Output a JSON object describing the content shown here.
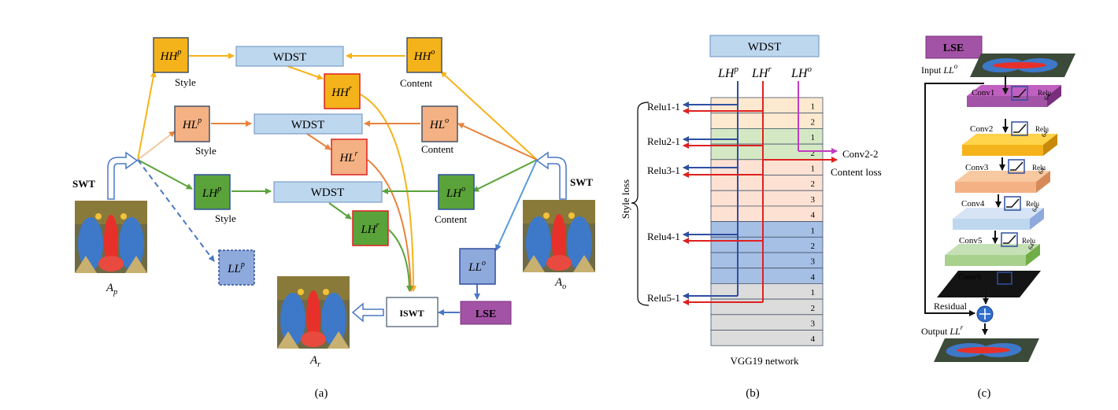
{
  "panel_a": {
    "caption": "(a)",
    "swt_left": "SWT",
    "swt_right": "SWT",
    "input_p": {
      "base": "A",
      "sub": "p"
    },
    "input_o": {
      "base": "A",
      "sub": "o"
    },
    "output_r": {
      "base": "A",
      "sub": "r"
    },
    "wdst": "WDST",
    "iswt": "ISWT",
    "lse": "LSE",
    "style": "Style",
    "content": "Content",
    "HHp": {
      "base": "HH",
      "sup": "p"
    },
    "HHo": {
      "base": "HH",
      "sup": "o"
    },
    "HHr": {
      "base": "HH",
      "sup": "r"
    },
    "HLp": {
      "base": "HL",
      "sup": "p"
    },
    "HLo": {
      "base": "HL",
      "sup": "o"
    },
    "HLr": {
      "base": "HL",
      "sup": "r"
    },
    "LHp": {
      "base": "LH",
      "sup": "p"
    },
    "LHo": {
      "base": "LH",
      "sup": "o"
    },
    "LHr": {
      "base": "LH",
      "sup": "r"
    },
    "LLp": {
      "base": "LL",
      "sup": "p"
    },
    "LLo": {
      "base": "LL",
      "sup": "o"
    },
    "colors": {
      "hh": "#f5b31b",
      "hl": "#f0a479",
      "lh": "#5aa33a",
      "ll": "#8ea9db",
      "lse": "#a353a6",
      "wdst": "#bdd7ee"
    }
  },
  "panel_b": {
    "caption": "(b)",
    "wdst": "WDST",
    "head_p": {
      "base": "LH",
      "sup": "p"
    },
    "head_r": {
      "base": "LH",
      "sup": "r"
    },
    "head_o": {
      "base": "LH",
      "sup": "o"
    },
    "relu": [
      "Relu1-1",
      "Relu2-1",
      "Relu3-1",
      "Relu4-1",
      "Relu5-1"
    ],
    "conv_out": "Conv2-2",
    "content_loss": "Content loss",
    "style_loss": "Style loss",
    "network": "VGG19 network",
    "layer_numbers": [
      "1",
      "2",
      "1",
      "2",
      "1",
      "2",
      "3",
      "4",
      "1",
      "2",
      "3",
      "4",
      "1",
      "2",
      "3",
      "4"
    ]
  },
  "panel_c": {
    "caption": "(c)",
    "lse": "LSE",
    "input": {
      "base": "Input ",
      "var": "LL",
      "sup": "o"
    },
    "output": {
      "base": "Output ",
      "var": "LL",
      "sup": "r"
    },
    "residual": "Residual",
    "layers": [
      {
        "name": "Conv1",
        "act": "Relu",
        "ch": "64"
      },
      {
        "name": "Conv2",
        "act": "Relu",
        "ch": "64"
      },
      {
        "name": "Conv3",
        "act": "Relu",
        "ch": "64"
      },
      {
        "name": "Conv4",
        "act": "Relu",
        "ch": "64"
      },
      {
        "name": "Conv5",
        "act": "Relu",
        "ch": "64"
      },
      {
        "name": "Conv6",
        "act": "",
        "ch": ""
      }
    ]
  }
}
